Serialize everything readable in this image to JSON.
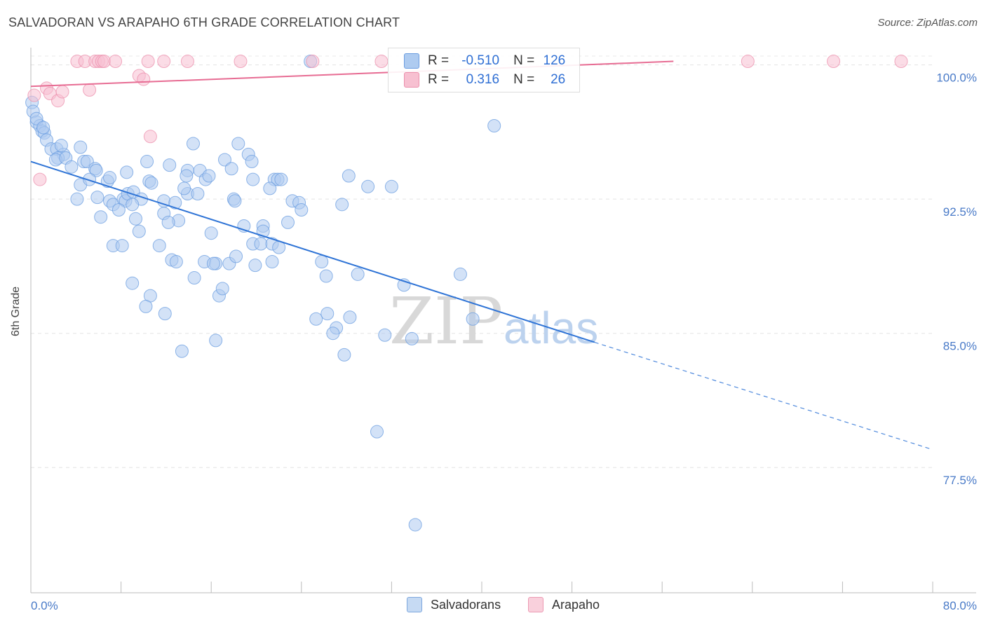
{
  "title": "SALVADORAN VS ARAPAHO 6TH GRADE CORRELATION CHART",
  "source": "Source: ZipAtlas.com",
  "watermark": {
    "part1": "ZIP",
    "part2": "atlas"
  },
  "legend_box": {
    "rows": [
      {
        "r_label": "R =",
        "r_value": "-0.510",
        "n_label": "N =",
        "n_value": "126",
        "fill": "#aecbf0",
        "stroke": "#6b9de0"
      },
      {
        "r_label": "R =",
        "r_value": "0.316",
        "n_label": "N =",
        "n_value": "26",
        "fill": "#f7c0d1",
        "stroke": "#ec8fac"
      }
    ]
  },
  "bottom_legend": [
    {
      "label": "Salvadorans",
      "fill": "#c6daf3",
      "stroke": "#7da7de"
    },
    {
      "label": "Arapaho",
      "fill": "#f9d0dc",
      "stroke": "#ec9ab3"
    }
  ],
  "chart_data": {
    "type": "scatter",
    "title": "SALVADORAN VS ARAPAHO 6TH GRADE CORRELATION CHART",
    "xlabel": "",
    "ylabel": "6th Grade",
    "xlim": [
      0,
      80
    ],
    "ylim": [
      70.5,
      101.2
    ],
    "x_tick_labels": [
      "0.0%",
      "80.0%"
    ],
    "y_ticks": [
      100.0,
      92.5,
      85.0,
      77.5
    ],
    "y_tick_labels": [
      "100.0%",
      "92.5%",
      "85.0%",
      "77.5%"
    ],
    "grid": true,
    "legend_position": "top-center",
    "series": [
      {
        "name": "Salvadorans",
        "color": "#6b9de0",
        "fill": "#aecbf0",
        "trend": {
          "x": [
            0,
            50
          ],
          "y": [
            94.6,
            84.5
          ],
          "dashed_to": [
            80,
            78.5
          ]
        },
        "points": [
          [
            0.1,
            97.9
          ],
          [
            0.2,
            97.4
          ],
          [
            0.5,
            96.8
          ],
          [
            0.8,
            96.6
          ],
          [
            1.0,
            96.3
          ],
          [
            1.2,
            96.2
          ],
          [
            1.4,
            95.8
          ],
          [
            1.8,
            95.3
          ],
          [
            2.3,
            95.3
          ],
          [
            2.9,
            95.0
          ],
          [
            4.4,
            95.4
          ],
          [
            2.4,
            94.8
          ],
          [
            2.2,
            94.7
          ],
          [
            3.1,
            94.8
          ],
          [
            4.7,
            94.6
          ],
          [
            5.0,
            94.6
          ],
          [
            3.6,
            94.3
          ],
          [
            5.7,
            94.2
          ],
          [
            5.8,
            94.1
          ],
          [
            8.5,
            94.0
          ],
          [
            10.3,
            94.6
          ],
          [
            12.3,
            94.4
          ],
          [
            13.9,
            94.1
          ],
          [
            13.8,
            93.8
          ],
          [
            15.0,
            94.1
          ],
          [
            17.2,
            94.7
          ],
          [
            17.8,
            94.2
          ],
          [
            19.3,
            95.0
          ],
          [
            18.4,
            95.6
          ],
          [
            19.6,
            94.6
          ],
          [
            14.4,
            95.6
          ],
          [
            4.4,
            93.3
          ],
          [
            5.2,
            93.6
          ],
          [
            6.8,
            93.5
          ],
          [
            7.0,
            93.7
          ],
          [
            10.5,
            93.5
          ],
          [
            10.7,
            93.4
          ],
          [
            15.5,
            93.6
          ],
          [
            15.8,
            93.8
          ],
          [
            19.7,
            93.6
          ],
          [
            21.6,
            93.6
          ],
          [
            21.9,
            93.6
          ],
          [
            22.2,
            93.6
          ],
          [
            28.2,
            93.8
          ],
          [
            29.9,
            93.2
          ],
          [
            32.0,
            93.2
          ],
          [
            21.2,
            93.1
          ],
          [
            4.1,
            92.5
          ],
          [
            5.9,
            92.6
          ],
          [
            7.0,
            92.4
          ],
          [
            7.3,
            92.2
          ],
          [
            8.2,
            92.5
          ],
          [
            8.4,
            92.4
          ],
          [
            8.6,
            92.8
          ],
          [
            9.1,
            92.9
          ],
          [
            9.8,
            92.5
          ],
          [
            9.0,
            92.2
          ],
          [
            11.8,
            92.4
          ],
          [
            12.8,
            92.3
          ],
          [
            13.9,
            92.8
          ],
          [
            14.8,
            92.8
          ],
          [
            13.6,
            93.1
          ],
          [
            18.0,
            92.5
          ],
          [
            18.1,
            92.4
          ],
          [
            23.2,
            92.4
          ],
          [
            23.8,
            92.3
          ],
          [
            27.6,
            92.2
          ],
          [
            6.2,
            91.5
          ],
          [
            7.8,
            91.9
          ],
          [
            9.3,
            91.4
          ],
          [
            11.8,
            91.7
          ],
          [
            13.1,
            91.3
          ],
          [
            12.2,
            91.2
          ],
          [
            18.9,
            91.0
          ],
          [
            20.6,
            91.0
          ],
          [
            22.8,
            91.2
          ],
          [
            24.0,
            91.9
          ],
          [
            9.6,
            90.7
          ],
          [
            16.0,
            90.6
          ],
          [
            20.6,
            90.7
          ],
          [
            7.3,
            89.9
          ],
          [
            8.1,
            89.9
          ],
          [
            11.4,
            89.9
          ],
          [
            19.7,
            90.0
          ],
          [
            20.4,
            90.0
          ],
          [
            21.4,
            90.0
          ],
          [
            22.0,
            89.8
          ],
          [
            12.5,
            89.1
          ],
          [
            12.9,
            89.0
          ],
          [
            15.4,
            89.0
          ],
          [
            16.4,
            88.9
          ],
          [
            17.6,
            88.9
          ],
          [
            18.2,
            89.3
          ],
          [
            19.9,
            88.8
          ],
          [
            21.4,
            89.0
          ],
          [
            25.8,
            89.0
          ],
          [
            14.5,
            88.1
          ],
          [
            16.2,
            88.9
          ],
          [
            26.2,
            88.2
          ],
          [
            29.0,
            88.3
          ],
          [
            38.1,
            88.3
          ],
          [
            33.1,
            87.7
          ],
          [
            9.0,
            87.8
          ],
          [
            10.6,
            87.1
          ],
          [
            16.7,
            87.1
          ],
          [
            17.0,
            87.5
          ],
          [
            10.2,
            86.5
          ],
          [
            11.9,
            86.1
          ],
          [
            25.3,
            85.8
          ],
          [
            26.3,
            86.1
          ],
          [
            27.1,
            85.3
          ],
          [
            28.3,
            85.9
          ],
          [
            26.8,
            85.0
          ],
          [
            31.4,
            84.9
          ],
          [
            33.8,
            84.7
          ],
          [
            39.2,
            85.8
          ],
          [
            16.4,
            84.6
          ],
          [
            13.4,
            84.0
          ],
          [
            27.8,
            83.8
          ],
          [
            30.7,
            79.5
          ],
          [
            34.1,
            74.3
          ],
          [
            24.8,
            100.2
          ],
          [
            41.1,
            96.6
          ],
          [
            0.5,
            97.0
          ],
          [
            1.1,
            96.5
          ],
          [
            2.7,
            95.5
          ]
        ]
      },
      {
        "name": "Arapaho",
        "color": "#ec8fac",
        "fill": "#f7c0d1",
        "trend": {
          "x": [
            0,
            57
          ],
          "y": [
            98.8,
            100.2
          ]
        },
        "points": [
          [
            0.3,
            98.3
          ],
          [
            1.4,
            98.7
          ],
          [
            1.7,
            98.4
          ],
          [
            2.4,
            98.0
          ],
          [
            2.8,
            98.5
          ],
          [
            4.1,
            100.2
          ],
          [
            4.8,
            100.2
          ],
          [
            5.7,
            100.2
          ],
          [
            6.0,
            100.2
          ],
          [
            6.3,
            100.2
          ],
          [
            6.5,
            100.2
          ],
          [
            7.5,
            100.2
          ],
          [
            10.4,
            100.2
          ],
          [
            11.8,
            100.2
          ],
          [
            13.9,
            100.2
          ],
          [
            18.6,
            100.2
          ],
          [
            25.0,
            100.2
          ],
          [
            31.1,
            100.2
          ],
          [
            63.6,
            100.2
          ],
          [
            71.2,
            100.2
          ],
          [
            77.2,
            100.2
          ],
          [
            9.6,
            99.4
          ],
          [
            10.0,
            99.2
          ],
          [
            5.2,
            98.6
          ],
          [
            10.6,
            96.0
          ],
          [
            0.8,
            93.6
          ]
        ]
      }
    ]
  }
}
